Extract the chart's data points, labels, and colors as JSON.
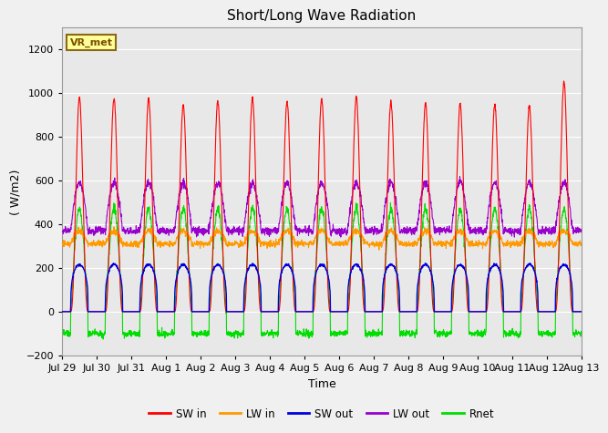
{
  "title": "Short/Long Wave Radiation",
  "xlabel": "Time",
  "ylabel": "( W/m2)",
  "ylim": [
    -200,
    1300
  ],
  "yticks": [
    -200,
    0,
    200,
    400,
    600,
    800,
    1000,
    1200
  ],
  "annotation": "VR_met",
  "x_tick_labels": [
    "Jul 29",
    "Jul 30",
    "Jul 31",
    "Aug 1",
    "Aug 2",
    "Aug 3",
    "Aug 4",
    "Aug 5",
    "Aug 6",
    "Aug 7",
    "Aug 8",
    "Aug 9",
    "Aug 10",
    "Aug 11",
    "Aug 12",
    "Aug 13"
  ],
  "colors": {
    "SW_in": "#ff0000",
    "LW_in": "#ff9900",
    "SW_out": "#0000dd",
    "LW_out": "#9900cc",
    "Rnet": "#00dd00"
  },
  "legend_labels": [
    "SW in",
    "LW in",
    "SW out",
    "LW out",
    "Rnet"
  ],
  "fig_bg": "#f0f0f0",
  "plot_bg": "#e8e8e8"
}
